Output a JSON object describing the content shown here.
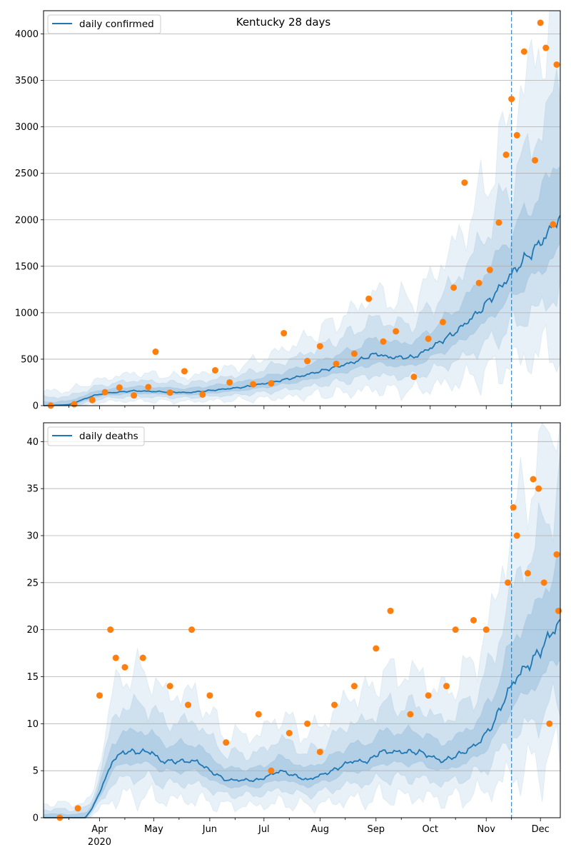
{
  "chart_data": [
    {
      "type": "line",
      "title": "Kentucky 28 days",
      "legend": [
        "daily confirmed"
      ],
      "legend_position": "top-left",
      "grid": "horizontal",
      "ylim": [
        0,
        4250
      ],
      "yticks": [
        0,
        500,
        1000,
        1500,
        2000,
        2500,
        3000,
        3500,
        4000
      ],
      "xlim": [
        "2020-03-01",
        "2020-12-12"
      ],
      "forecast_start": "2020-11-15",
      "colors": {
        "line": "#1f77b4",
        "points": "#ff7f0e",
        "band": "#1f77b4",
        "vline": "#1f77b4"
      },
      "series": [
        {
          "name": "daily confirmed",
          "points": [
            [
              "2020-03-01",
              0
            ],
            [
              "2020-03-15",
              10
            ],
            [
              "2020-03-29",
              110
            ],
            [
              "2020-04-05",
              135
            ],
            [
              "2020-04-20",
              160
            ],
            [
              "2020-05-05",
              150
            ],
            [
              "2020-05-20",
              140
            ],
            [
              "2020-06-05",
              170
            ],
            [
              "2020-06-20",
              200
            ],
            [
              "2020-07-05",
              250
            ],
            [
              "2020-07-20",
              310
            ],
            [
              "2020-08-05",
              390
            ],
            [
              "2020-08-20",
              470
            ],
            [
              "2020-09-01",
              560
            ],
            [
              "2020-09-08",
              520
            ],
            [
              "2020-09-22",
              520
            ],
            [
              "2020-10-01",
              620
            ],
            [
              "2020-10-15",
              790
            ],
            [
              "2020-10-29",
              1030
            ],
            [
              "2020-11-10",
              1300
            ],
            [
              "2020-11-20",
              1530
            ],
            [
              "2020-12-01",
              1750
            ],
            [
              "2020-12-12",
              2050
            ]
          ]
        }
      ],
      "scatter": [
        [
          "2020-03-05",
          0
        ],
        [
          "2020-03-18",
          15
        ],
        [
          "2020-03-28",
          60
        ],
        [
          "2020-04-04",
          145
        ],
        [
          "2020-04-12",
          195
        ],
        [
          "2020-04-20",
          110
        ],
        [
          "2020-04-28",
          200
        ],
        [
          "2020-05-02",
          580
        ],
        [
          "2020-05-10",
          140
        ],
        [
          "2020-05-18",
          370
        ],
        [
          "2020-05-28",
          120
        ],
        [
          "2020-06-04",
          380
        ],
        [
          "2020-06-12",
          250
        ],
        [
          "2020-06-25",
          230
        ],
        [
          "2020-07-05",
          240
        ],
        [
          "2020-07-12",
          780
        ],
        [
          "2020-07-25",
          480
        ],
        [
          "2020-08-01",
          640
        ],
        [
          "2020-08-10",
          450
        ],
        [
          "2020-08-20",
          560
        ],
        [
          "2020-08-28",
          1150
        ],
        [
          "2020-09-05",
          690
        ],
        [
          "2020-09-12",
          800
        ],
        [
          "2020-09-22",
          310
        ],
        [
          "2020-09-30",
          720
        ],
        [
          "2020-10-08",
          900
        ],
        [
          "2020-10-14",
          1270
        ],
        [
          "2020-10-20",
          2400
        ],
        [
          "2020-10-28",
          1320
        ],
        [
          "2020-11-03",
          1460
        ],
        [
          "2020-11-08",
          1970
        ],
        [
          "2020-11-12",
          2700
        ],
        [
          "2020-11-15",
          3300
        ],
        [
          "2020-11-18",
          2910
        ],
        [
          "2020-11-22",
          3810
        ],
        [
          "2020-11-28",
          2640
        ],
        [
          "2020-12-01",
          4120
        ],
        [
          "2020-12-04",
          3850
        ],
        [
          "2020-12-08",
          1950
        ],
        [
          "2020-12-10",
          3670
        ]
      ]
    },
    {
      "type": "line",
      "title": "",
      "legend": [
        "daily deaths"
      ],
      "legend_position": "top-left",
      "grid": "horizontal",
      "ylim": [
        0,
        42
      ],
      "yticks": [
        0,
        5,
        10,
        15,
        20,
        25,
        30,
        35,
        40
      ],
      "xlim": [
        "2020-03-01",
        "2020-12-12"
      ],
      "xticks": [
        {
          "date": "2020-04-01",
          "label": "Apr"
        },
        {
          "date": "2020-05-01",
          "label": "May"
        },
        {
          "date": "2020-06-01",
          "label": "Jun"
        },
        {
          "date": "2020-07-01",
          "label": "Jul"
        },
        {
          "date": "2020-08-01",
          "label": "Aug"
        },
        {
          "date": "2020-09-01",
          "label": "Sep"
        },
        {
          "date": "2020-10-01",
          "label": "Oct"
        },
        {
          "date": "2020-11-01",
          "label": "Nov"
        },
        {
          "date": "2020-12-01",
          "label": "Dec"
        }
      ],
      "year_label": "2020",
      "forecast_start": "2020-11-15",
      "colors": {
        "line": "#1f77b4",
        "points": "#ff7f0e",
        "band": "#1f77b4",
        "vline": "#1f77b4"
      },
      "series": [
        {
          "name": "daily deaths",
          "points": [
            [
              "2020-03-01",
              0
            ],
            [
              "2020-03-24",
              0
            ],
            [
              "2020-03-28",
              1
            ],
            [
              "2020-04-04",
              4
            ],
            [
              "2020-04-08",
              6
            ],
            [
              "2020-04-14",
              7
            ],
            [
              "2020-04-30",
              7
            ],
            [
              "2020-05-05",
              6
            ],
            [
              "2020-05-25",
              6
            ],
            [
              "2020-06-01",
              5
            ],
            [
              "2020-06-10",
              4
            ],
            [
              "2020-06-28",
              4
            ],
            [
              "2020-07-10",
              5
            ],
            [
              "2020-07-25",
              4
            ],
            [
              "2020-08-08",
              5
            ],
            [
              "2020-08-18",
              6
            ],
            [
              "2020-08-28",
              6
            ],
            [
              "2020-09-03",
              7
            ],
            [
              "2020-09-25",
              7
            ],
            [
              "2020-10-08",
              6
            ],
            [
              "2020-10-20",
              7
            ],
            [
              "2020-10-28",
              8
            ],
            [
              "2020-11-05",
              10
            ],
            [
              "2020-11-12",
              13
            ],
            [
              "2020-11-18",
              15
            ],
            [
              "2020-11-28",
              17
            ],
            [
              "2020-12-05",
              19
            ],
            [
              "2020-12-12",
              21
            ]
          ]
        }
      ],
      "scatter": [
        [
          "2020-03-10",
          0
        ],
        [
          "2020-03-20",
          1
        ],
        [
          "2020-04-01",
          13
        ],
        [
          "2020-04-07",
          20
        ],
        [
          "2020-04-10",
          17
        ],
        [
          "2020-04-15",
          16
        ],
        [
          "2020-04-25",
          17
        ],
        [
          "2020-05-10",
          14
        ],
        [
          "2020-05-20",
          12
        ],
        [
          "2020-05-22",
          20
        ],
        [
          "2020-06-01",
          13
        ],
        [
          "2020-06-10",
          8
        ],
        [
          "2020-06-28",
          11
        ],
        [
          "2020-07-05",
          5
        ],
        [
          "2020-07-15",
          9
        ],
        [
          "2020-07-25",
          10
        ],
        [
          "2020-08-01",
          7
        ],
        [
          "2020-08-09",
          12
        ],
        [
          "2020-08-20",
          14
        ],
        [
          "2020-09-01",
          18
        ],
        [
          "2020-09-09",
          22
        ],
        [
          "2020-09-20",
          11
        ],
        [
          "2020-09-30",
          13
        ],
        [
          "2020-10-10",
          14
        ],
        [
          "2020-10-15",
          20
        ],
        [
          "2020-10-25",
          21
        ],
        [
          "2020-11-01",
          20
        ],
        [
          "2020-11-13",
          25
        ],
        [
          "2020-11-16",
          33
        ],
        [
          "2020-11-18",
          30
        ],
        [
          "2020-11-24",
          26
        ],
        [
          "2020-11-27",
          36
        ],
        [
          "2020-11-30",
          35
        ],
        [
          "2020-12-03",
          25
        ],
        [
          "2020-12-06",
          10
        ],
        [
          "2020-12-10",
          28
        ],
        [
          "2020-12-11",
          22
        ]
      ]
    }
  ]
}
